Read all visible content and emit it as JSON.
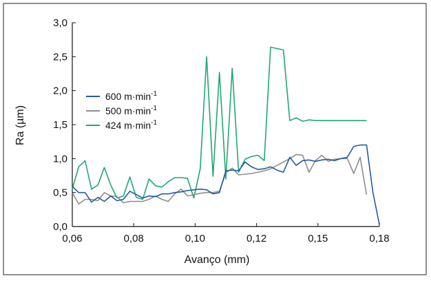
{
  "chart_data": {
    "type": "line",
    "title": "",
    "xlabel": "Avanço (mm)",
    "ylabel": "Ra (µm)",
    "xlim": [
      0.06,
      0.18
    ],
    "ylim": [
      0.0,
      3.0
    ],
    "x_ticks": [
      "0,06",
      "0,08",
      "0,10",
      "0,12",
      "0,15",
      "0,18"
    ],
    "y_ticks": [
      "0,0",
      "0,5",
      "1,0",
      "1,5",
      "2,0",
      "2,5",
      "3,0"
    ],
    "grid": false,
    "legend_position": "center-left",
    "series": [
      {
        "name": "600 m·min",
        "superscript": "-1",
        "color": "#1f5aa6",
        "x": [
          0.06,
          0.0625,
          0.065,
          0.0675,
          0.07,
          0.0725,
          0.075,
          0.0775,
          0.08,
          0.0825,
          0.085,
          0.0875,
          0.09,
          0.0925,
          0.095,
          0.0975,
          0.1,
          0.1025,
          0.105,
          0.1075,
          0.11,
          0.1125,
          0.115,
          0.1175,
          0.12,
          0.1225,
          0.125,
          0.1275,
          0.13,
          0.1325,
          0.135,
          0.1375,
          0.14,
          0.1425,
          0.145,
          0.1475,
          0.15,
          0.1525,
          0.155,
          0.1575,
          0.16,
          0.1625,
          0.165,
          0.1675,
          0.17,
          0.1725,
          0.175,
          0.1775,
          0.18
        ],
        "y": [
          0.59,
          0.5,
          0.5,
          0.36,
          0.43,
          0.37,
          0.45,
          0.38,
          0.4,
          0.52,
          0.47,
          0.42,
          0.45,
          0.44,
          0.48,
          0.48,
          0.5,
          0.51,
          0.53,
          0.54,
          0.55,
          0.54,
          0.48,
          0.5,
          0.82,
          0.83,
          0.82,
          0.95,
          0.88,
          0.84,
          0.85,
          0.88,
          0.83,
          0.8,
          1.02,
          0.9,
          0.97,
          0.98,
          0.96,
          0.98,
          0.99,
          0.97,
          1.0,
          1.02,
          1.18,
          1.2,
          1.2,
          0.5,
          0.03
        ]
      },
      {
        "name": "500 m·min",
        "superscript": "-1",
        "color": "#8c8c8c",
        "x": [
          0.06,
          0.0625,
          0.065,
          0.0675,
          0.07,
          0.0725,
          0.075,
          0.0775,
          0.08,
          0.0825,
          0.085,
          0.0875,
          0.09,
          0.0925,
          0.095,
          0.0975,
          0.1,
          0.1025,
          0.105,
          0.1075,
          0.11,
          0.1125,
          0.115,
          0.1175,
          0.12,
          0.1225,
          0.125,
          0.1275,
          0.13,
          0.1325,
          0.135,
          0.1375,
          0.14,
          0.1425,
          0.145,
          0.1475,
          0.15,
          0.1525,
          0.155,
          0.1575,
          0.16,
          0.1625,
          0.165,
          0.1675,
          0.17,
          0.1725,
          0.175
        ],
        "y": [
          0.5,
          0.33,
          0.4,
          0.4,
          0.38,
          0.5,
          0.45,
          0.44,
          0.35,
          0.37,
          0.37,
          0.37,
          0.4,
          0.45,
          0.4,
          0.37,
          0.48,
          0.55,
          0.45,
          0.47,
          0.49,
          0.5,
          0.5,
          0.52,
          0.79,
          0.86,
          0.76,
          0.77,
          0.78,
          0.8,
          0.82,
          0.85,
          0.9,
          0.95,
          1.0,
          1.06,
          1.05,
          0.8,
          0.97,
          1.05,
          0.96,
          0.99,
          1.0,
          1.0,
          0.78,
          1.02,
          0.47
        ]
      },
      {
        "name": "424 m·min",
        "superscript": "-1",
        "color": "#1fa870",
        "x": [
          0.06,
          0.0625,
          0.065,
          0.0675,
          0.07,
          0.0725,
          0.075,
          0.0775,
          0.08,
          0.0825,
          0.085,
          0.0875,
          0.09,
          0.0925,
          0.095,
          0.0975,
          0.1,
          0.1025,
          0.105,
          0.1075,
          0.11,
          0.1125,
          0.115,
          0.1175,
          0.12,
          0.1225,
          0.125,
          0.1275,
          0.13,
          0.1325,
          0.135,
          0.1375,
          0.14,
          0.1425,
          0.145,
          0.1475,
          0.15,
          0.1525,
          0.155,
          0.1575,
          0.16,
          0.1625,
          0.165,
          0.1675,
          0.17,
          0.1725,
          0.175
        ],
        "y": [
          0.55,
          0.88,
          0.97,
          0.55,
          0.61,
          0.87,
          0.61,
          0.42,
          0.45,
          0.73,
          0.43,
          0.4,
          0.7,
          0.6,
          0.58,
          0.66,
          0.72,
          0.72,
          0.71,
          0.42,
          0.85,
          2.5,
          0.74,
          2.27,
          0.7,
          2.33,
          0.8,
          0.99,
          1.03,
          1.05,
          0.97,
          2.64,
          2.62,
          2.6,
          1.56,
          1.6,
          1.55,
          1.57,
          1.56,
          1.56,
          1.56,
          1.56,
          1.56,
          1.56,
          1.56,
          1.56,
          1.56
        ]
      }
    ]
  }
}
